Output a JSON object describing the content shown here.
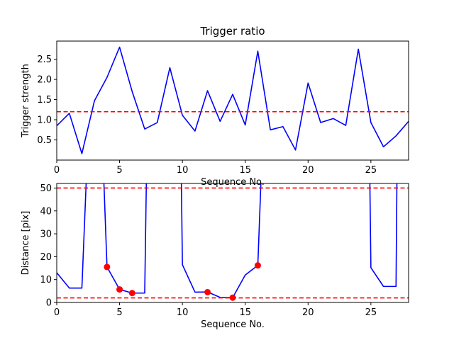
{
  "chart_data": [
    {
      "type": "line",
      "title": "Trigger ratio",
      "xlabel": "Sequence No.",
      "ylabel": "Trigger strength",
      "xlim": [
        0,
        28
      ],
      "ylim": [
        0,
        2.95
      ],
      "xticks": [
        "0",
        "5",
        "10",
        "15",
        "20",
        "25"
      ],
      "xtick_values": [
        0,
        5,
        10,
        15,
        20,
        25
      ],
      "yticks": [
        "0.5",
        "1.0",
        "1.5",
        "2.0",
        "2.5"
      ],
      "ytick_values": [
        0.5,
        1.0,
        1.5,
        2.0,
        2.5
      ],
      "grid": false,
      "series": [
        {
          "color": "#0000ff",
          "x": [
            0,
            1,
            2,
            3,
            4,
            5,
            6,
            7,
            8,
            9,
            10,
            11,
            12,
            13,
            14,
            15,
            16,
            17,
            18,
            19,
            20,
            21,
            22,
            23,
            24,
            25,
            26,
            27,
            28
          ],
          "y": [
            0.85,
            1.16,
            0.16,
            1.47,
            2.05,
            2.8,
            1.7,
            0.77,
            0.93,
            2.29,
            1.11,
            0.72,
            1.72,
            0.96,
            1.63,
            0.87,
            2.7,
            0.75,
            0.83,
            0.25,
            1.91,
            0.93,
            1.03,
            0.86,
            2.75,
            0.93,
            0.33,
            0.6,
            0.96
          ]
        }
      ],
      "hlines": [
        {
          "y": 1.2,
          "color": "#ff0000",
          "style": "dashed"
        }
      ]
    },
    {
      "type": "line",
      "title": "",
      "xlabel": "Sequence No.",
      "ylabel": "Distance [pix]",
      "xlim": [
        0,
        28
      ],
      "ylim": [
        0,
        52
      ],
      "xticks": [
        "0",
        "5",
        "10",
        "15",
        "20",
        "25"
      ],
      "xtick_values": [
        0,
        5,
        10,
        15,
        20,
        25
      ],
      "yticks": [
        "0",
        "10",
        "20",
        "30",
        "40",
        "50"
      ],
      "ytick_values": [
        0,
        10,
        20,
        30,
        40,
        50
      ],
      "grid": false,
      "series": [
        {
          "color": "#0000ff",
          "x": [
            0,
            1,
            2,
            2.4,
            3.7,
            4,
            5,
            6,
            6.4,
            7,
            7.15,
            9.9,
            10,
            11,
            12,
            13,
            14,
            15,
            16,
            16.3,
            24.9,
            25,
            26,
            27,
            27.08
          ],
          "y": [
            13,
            6.3,
            6.3,
            60,
            60,
            15.5,
            5.7,
            4.1,
            4.1,
            4.1,
            60,
            60,
            16.5,
            4.5,
            4.6,
            2.2,
            2.1,
            12,
            16.2,
            60,
            60,
            15.2,
            7,
            7,
            60
          ]
        },
        {
          "type": "scatter",
          "color": "#ff0000",
          "x": [
            4,
            5,
            6,
            12,
            14,
            16
          ],
          "y": [
            15.5,
            5.7,
            4.1,
            4.5,
            2.1,
            16.2
          ]
        }
      ],
      "hlines": [
        {
          "y": 50,
          "color": "#ff0000",
          "style": "dashed"
        },
        {
          "y": 2,
          "color": "#ff0000",
          "style": "dashed"
        }
      ]
    }
  ]
}
